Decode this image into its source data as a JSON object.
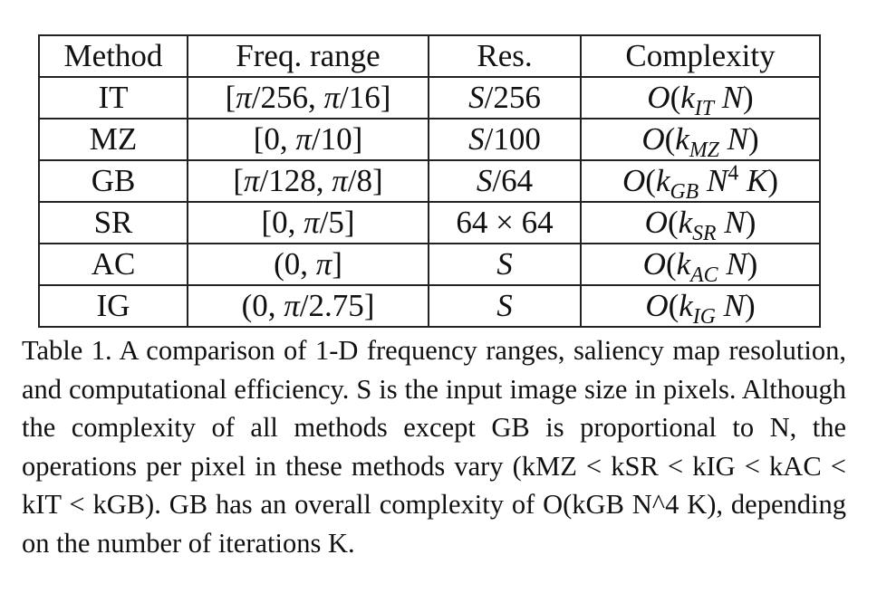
{
  "table": {
    "headers": [
      "Method",
      "Freq. range",
      "Res.",
      "Complexity"
    ],
    "rows": [
      {
        "method": "IT",
        "freq_range": "[π/256, π/16]",
        "res": "S/256",
        "complexity": "O(k_IT N)"
      },
      {
        "method": "MZ",
        "freq_range": "[0, π/10]",
        "res": "S/100",
        "complexity": "O(k_MZ N)"
      },
      {
        "method": "GB",
        "freq_range": "[π/128, π/8]",
        "res": "S/64",
        "complexity": "O(k_GB N^4 K)"
      },
      {
        "method": "SR",
        "freq_range": "[0, π/5]",
        "res": "64 × 64",
        "complexity": "O(k_SR N)"
      },
      {
        "method": "AC",
        "freq_range": "(0, π]",
        "res": "S",
        "complexity": "O(k_AC N)"
      },
      {
        "method": "IG",
        "freq_range": "(0, π/2.75]",
        "res": "S",
        "complexity": "O(k_IG N)"
      }
    ]
  },
  "caption": {
    "text": "Table 1. A comparison of 1-D frequency ranges, saliency map resolution, and computational efficiency. S is the input image size in pixels. Although the complexity of all methods except GB is proportional to N, the operations per pixel in these methods vary (kMZ < kSR < kIG < kAC < kIT < kGB). GB has an overall complexity of O(kGB N^4 K), depending on the number of iterations K."
  }
}
